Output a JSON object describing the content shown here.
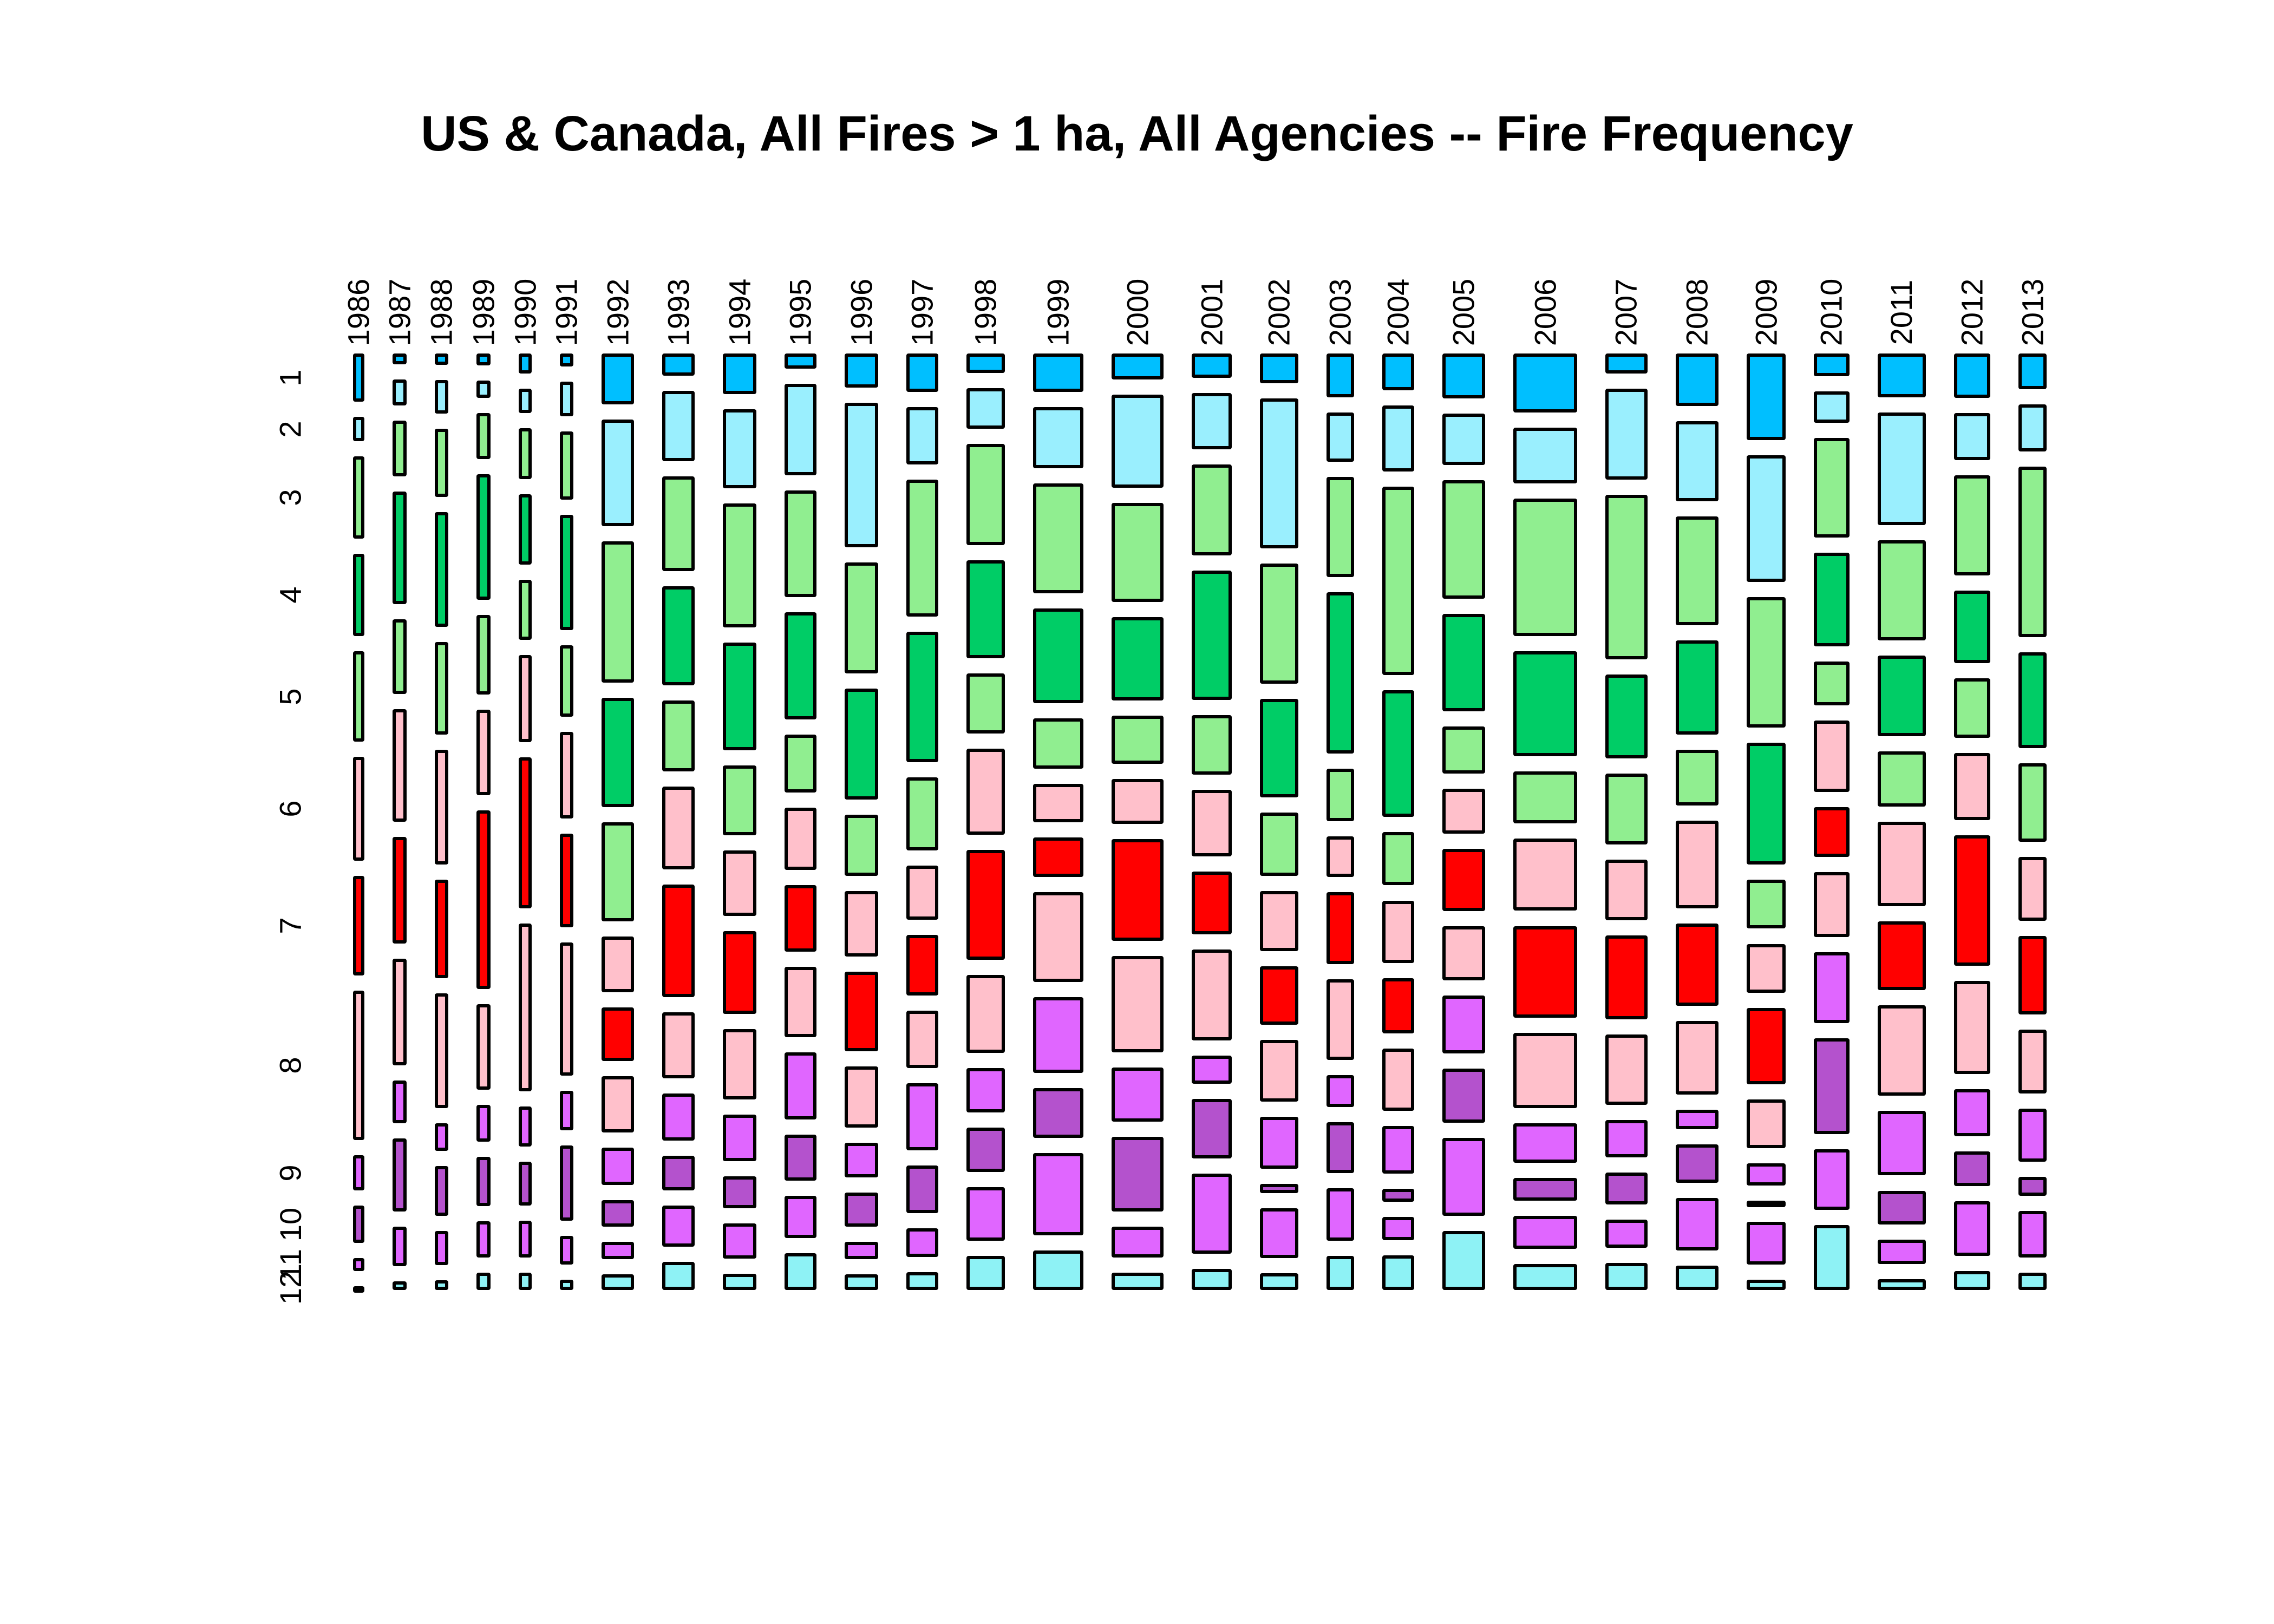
{
  "title": "US & Canada, All Fires > 1 ha, All Agencies -- Fire Frequency",
  "chart_data": {
    "type": "mosaic",
    "title": "US & Canada, All Fires > 1 ha, All Agencies -- Fire Frequency",
    "xlabel": "",
    "ylabel": "",
    "x_categories": [
      "1986",
      "1987",
      "1988",
      "1989",
      "1990",
      "1991",
      "1992",
      "1993",
      "1994",
      "1995",
      "1996",
      "1997",
      "1998",
      "1999",
      "2000",
      "2001",
      "2002",
      "2003",
      "2004",
      "2005",
      "2006",
      "2007",
      "2008",
      "2009",
      "2010",
      "2011",
      "2012",
      "2013"
    ],
    "y_categories": [
      "1",
      "2",
      "3",
      "4",
      "5",
      "6",
      "7",
      "8",
      "9",
      "10",
      "11",
      "12"
    ],
    "legend": "none",
    "grid": false,
    "month_colors": [
      "#00BFFF",
      "#9AEFFE",
      "#90EE90",
      "#00CD66",
      "#90EE90",
      "#FFC0CB",
      "#FF0000",
      "#FFC0CB",
      "#E066FF",
      "#B452CD",
      "#E066FF",
      "#8EF2F5"
    ],
    "cell_border_color": "#000000",
    "columns": [
      {
        "year": "1986",
        "width": 20,
        "month_share": [
          75,
          38,
          128,
          128,
          140,
          162,
          155,
          232,
          55,
          58,
          20,
          6
        ]
      },
      {
        "year": "1987",
        "width": 24,
        "month_share": [
          18,
          42,
          92,
          185,
          122,
          185,
          175,
          175,
          70,
          120,
          65,
          14
        ]
      },
      {
        "year": "1988",
        "width": 24,
        "month_share": [
          18,
          55,
          110,
          185,
          150,
          185,
          160,
          185,
          45,
          80,
          55,
          16
        ]
      },
      {
        "year": "1989",
        "width": 24,
        "month_share": [
          18,
          26,
          70,
          190,
          120,
          130,
          270,
          130,
          55,
          75,
          55,
          26
        ]
      },
      {
        "year": "1990",
        "width": 23,
        "month_share": [
          30,
          36,
          76,
          105,
          90,
          130,
          225,
          250,
          60,
          65,
          55,
          26
        ]
      },
      {
        "year": "1991",
        "width": 23,
        "month_share": [
          18,
          48,
          95,
          160,
          100,
          120,
          130,
          185,
          55,
          105,
          40,
          14
        ]
      },
      {
        "year": "1992",
        "width": 57,
        "month_share": [
          95,
          200,
          265,
          205,
          185,
          105,
          100,
          105,
          70,
          50,
          33,
          29
        ]
      },
      {
        "year": "1993",
        "width": 56,
        "month_share": [
          35,
          112,
          150,
          158,
          112,
          132,
          178,
          105,
          75,
          55,
          65,
          45
        ]
      },
      {
        "year": "1994",
        "width": 58,
        "month_share": [
          70,
          135,
          212,
          185,
          120,
          112,
          142,
          120,
          80,
          55,
          60,
          28
        ]
      },
      {
        "year": "1995",
        "width": 56,
        "month_share": [
          25,
          150,
          175,
          175,
          95,
          102,
          110,
          115,
          110,
          75,
          70,
          60
        ]
      },
      {
        "year": "1996",
        "width": 58,
        "month_share": [
          55,
          232,
          178,
          178,
          98,
          105,
          128,
          98,
          55,
          55,
          28,
          25
        ]
      },
      {
        "year": "1997",
        "width": 56,
        "month_share": [
          60,
          90,
          215,
          205,
          115,
          85,
          95,
          90,
          105,
          75,
          45,
          28
        ]
      },
      {
        "year": "1998",
        "width": 66,
        "month_share": [
          30,
          62,
          155,
          150,
          92,
          132,
          168,
          120,
          68,
          68,
          82,
          52
        ]
      },
      {
        "year": "1999",
        "width": 88,
        "month_share": [
          60,
          95,
          172,
          148,
          78,
          60,
          62,
          140,
          118,
          78,
          128,
          62
        ]
      },
      {
        "year": "2000",
        "width": 90,
        "month_share": [
          42,
          150,
          160,
          135,
          78,
          72,
          165,
          155,
          88,
          120,
          50,
          28
        ]
      },
      {
        "year": "2001",
        "width": 70,
        "month_share": [
          35,
          80,
          130,
          185,
          85,
          95,
          90,
          130,
          40,
          85,
          115,
          30
        ]
      },
      {
        "year": "2002",
        "width": 66,
        "month_share": [
          45,
          225,
          180,
          148,
          95,
          90,
          88,
          92,
          78,
          14,
          75,
          25
        ]
      },
      {
        "year": "2003",
        "width": 48,
        "month_share": [
          52,
          58,
          118,
          190,
          62,
          48,
          85,
          95,
          38,
          60,
          62,
          40
        ]
      },
      {
        "year": "2004",
        "width": 56,
        "month_share": [
          40,
          72,
          205,
          138,
          58,
          68,
          60,
          68,
          52,
          14,
          25,
          38
        ]
      },
      {
        "year": "2005",
        "width": 74,
        "month_share": [
          68,
          78,
          180,
          148,
          72,
          68,
          95,
          82,
          88,
          82,
          118,
          90
        ]
      },
      {
        "year": "2006",
        "width": 111,
        "month_share": [
          90,
          85,
          210,
          160,
          80,
          110,
          140,
          115,
          60,
          35,
          50,
          40
        ]
      },
      {
        "year": "2007",
        "width": 73,
        "month_share": [
          30,
          135,
          245,
          125,
          105,
          90,
          125,
          105,
          55,
          48,
          42,
          40
        ]
      },
      {
        "year": "2008",
        "width": 75,
        "month_share": [
          75,
          115,
          155,
          135,
          80,
          125,
          118,
          105,
          28,
          55,
          75,
          35
        ]
      },
      {
        "year": "2009",
        "width": 67,
        "month_share": [
          85,
          125,
          128,
          120,
          48,
          48,
          75,
          48,
          22,
          6,
          42,
          10
        ]
      },
      {
        "year": "2010",
        "width": 62,
        "month_share": [
          22,
          30,
          95,
          90,
          42,
          68,
          48,
          62,
          68,
          92,
          58,
          62
        ]
      },
      {
        "year": "2011",
        "width": 84,
        "month_share": [
          62,
          160,
          142,
          115,
          78,
          120,
          98,
          128,
          92,
          48,
          35,
          15
        ]
      },
      {
        "year": "2012",
        "width": 63,
        "month_share": [
          58,
          62,
          132,
          95,
          78,
          88,
          172,
          122,
          62,
          45,
          72,
          25
        ]
      },
      {
        "year": "2013",
        "width": 49,
        "month_share": [
          42,
          55,
          200,
          112,
          92,
          75,
          92,
          75,
          62,
          22,
          55,
          20
        ]
      }
    ]
  }
}
